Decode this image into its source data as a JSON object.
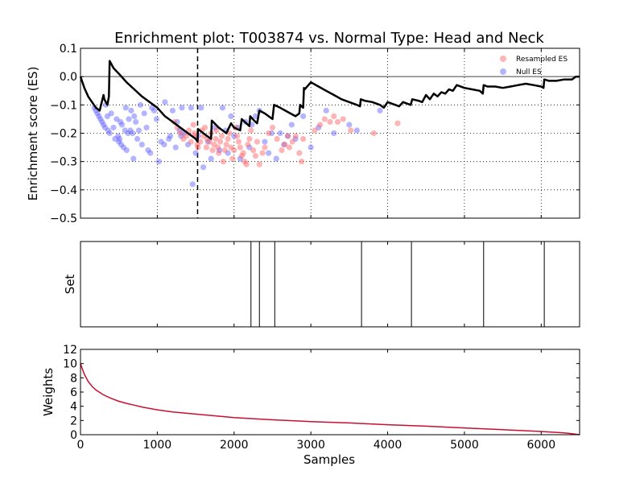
{
  "chart_data": [
    {
      "type": "line",
      "title": "Enrichment plot: T003874 vs. Normal Type: Head and Neck",
      "xlabel": "",
      "ylabel": "Enrichment score (ES)",
      "xlim": [
        0,
        6500
      ],
      "ylim": [
        -0.5,
        0.1
      ],
      "yticks": [
        0.1,
        0.0,
        -0.1,
        -0.2,
        -0.3,
        -0.4,
        -0.5
      ],
      "ytick_labels": [
        "0.1",
        "0.0",
        "−0.1",
        "−0.2",
        "−0.3",
        "−0.4",
        "−0.5"
      ],
      "grid": true,
      "legend": "top-right",
      "reference_line": 1525,
      "series": [
        {
          "name": "",
          "kind": "line",
          "color": "#000000",
          "x": [
            0,
            50,
            100,
            150,
            200,
            250,
            300,
            310,
            350,
            370,
            380,
            400,
            430,
            500,
            600,
            700,
            800,
            900,
            1000,
            1100,
            1200,
            1300,
            1400,
            1450,
            1500,
            1525,
            1530,
            1600,
            1700,
            1710,
            1800,
            1900,
            1960,
            2000,
            2080,
            2100,
            2200,
            2210,
            2260,
            2300,
            2330,
            2400,
            2500,
            2520,
            2600,
            2700,
            2800,
            2850,
            2860,
            2900,
            2910,
            2920,
            3000,
            3100,
            3200,
            3300,
            3400,
            3500,
            3600,
            3640,
            3650,
            3700,
            3800,
            3900,
            3950,
            4000,
            4100,
            4150,
            4200,
            4250,
            4300,
            4320,
            4400,
            4450,
            4500,
            4550,
            4600,
            4650,
            4700,
            4750,
            4800,
            4850,
            4900,
            5000,
            5100,
            5200,
            5240,
            5250,
            5300,
            5400,
            5500,
            5600,
            5700,
            5800,
            5900,
            6000,
            6030,
            6040,
            6100,
            6200,
            6300,
            6400,
            6450,
            6500
          ],
          "y": [
            0.0,
            -0.04,
            -0.07,
            -0.09,
            -0.11,
            -0.12,
            -0.065,
            -0.08,
            -0.1,
            -0.07,
            0.055,
            0.045,
            0.03,
            0.01,
            -0.02,
            -0.045,
            -0.07,
            -0.09,
            -0.11,
            -0.14,
            -0.16,
            -0.18,
            -0.2,
            -0.21,
            -0.22,
            -0.23,
            -0.185,
            -0.2,
            -0.22,
            -0.155,
            -0.18,
            -0.2,
            -0.165,
            -0.18,
            -0.19,
            -0.15,
            -0.175,
            -0.14,
            -0.155,
            -0.165,
            -0.12,
            -0.13,
            -0.15,
            -0.1,
            -0.11,
            -0.125,
            -0.14,
            -0.13,
            -0.1,
            -0.11,
            -0.04,
            -0.045,
            -0.02,
            -0.035,
            -0.05,
            -0.065,
            -0.08,
            -0.09,
            -0.1,
            -0.105,
            -0.08,
            -0.085,
            -0.09,
            -0.1,
            -0.11,
            -0.09,
            -0.1,
            -0.105,
            -0.09,
            -0.095,
            -0.1,
            -0.08,
            -0.085,
            -0.09,
            -0.065,
            -0.08,
            -0.06,
            -0.07,
            -0.055,
            -0.06,
            -0.045,
            -0.05,
            -0.03,
            -0.04,
            -0.045,
            -0.05,
            -0.06,
            -0.03,
            -0.035,
            -0.035,
            -0.04,
            -0.035,
            -0.03,
            -0.025,
            -0.03,
            -0.035,
            -0.04,
            -0.01,
            -0.015,
            -0.015,
            -0.01,
            -0.01,
            0.0,
            0.0
          ]
        },
        {
          "name": "Resampled ES",
          "kind": "scatter",
          "color": "#ff5a5a",
          "x": [
            1220,
            1260,
            1300,
            1340,
            1380,
            1410,
            1440,
            1470,
            1480,
            1500,
            1520,
            1530,
            1560,
            1580,
            1600,
            1620,
            1640,
            1650,
            1680,
            1700,
            1720,
            1740,
            1760,
            1770,
            1790,
            1800,
            1820,
            1840,
            1860,
            1880,
            1900,
            1920,
            1940,
            1960,
            1980,
            2000,
            2020,
            2040,
            2060,
            2080,
            2100,
            2120,
            2140,
            2160,
            2180,
            2200,
            2220,
            2250,
            2280,
            2300,
            2330,
            2370,
            2400,
            2450,
            2500,
            2560,
            2620,
            2660,
            2700,
            2720,
            2760,
            2800,
            2850,
            2880,
            2900,
            3050,
            3120,
            3180,
            3250,
            3300,
            3350,
            3420,
            3520,
            3820,
            4130
          ],
          "y": [
            -0.16,
            -0.18,
            -0.2,
            -0.22,
            -0.21,
            -0.19,
            -0.23,
            -0.17,
            -0.2,
            -0.21,
            -0.24,
            -0.25,
            -0.23,
            -0.19,
            -0.21,
            -0.18,
            -0.25,
            -0.22,
            -0.23,
            -0.2,
            -0.26,
            -0.24,
            -0.22,
            -0.19,
            -0.25,
            -0.27,
            -0.23,
            -0.21,
            -0.3,
            -0.26,
            -0.24,
            -0.22,
            -0.2,
            -0.25,
            -0.29,
            -0.26,
            -0.18,
            -0.21,
            -0.23,
            -0.25,
            -0.28,
            -0.27,
            -0.3,
            -0.31,
            -0.24,
            -0.22,
            -0.19,
            -0.26,
            -0.28,
            -0.23,
            -0.31,
            -0.27,
            -0.25,
            -0.2,
            -0.18,
            -0.22,
            -0.26,
            -0.24,
            -0.21,
            -0.25,
            -0.23,
            -0.21,
            -0.27,
            -0.3,
            -0.22,
            -0.19,
            -0.17,
            -0.15,
            -0.16,
            -0.14,
            -0.16,
            -0.15,
            -0.19,
            -0.2,
            -0.165
          ]
        },
        {
          "name": "Null ES",
          "kind": "scatter",
          "color": "#5a5aff",
          "x": [
            180,
            200,
            220,
            240,
            260,
            280,
            300,
            320,
            330,
            350,
            360,
            380,
            400,
            430,
            450,
            470,
            490,
            500,
            510,
            520,
            530,
            540,
            560,
            580,
            590,
            600,
            620,
            630,
            650,
            660,
            680,
            690,
            700,
            720,
            740,
            760,
            780,
            800,
            830,
            860,
            880,
            910,
            930,
            960,
            990,
            1020,
            1050,
            1090,
            1100,
            1150,
            1170,
            1200,
            1240,
            1260,
            1290,
            1310,
            1320,
            1350,
            1400,
            1440,
            1460,
            1500,
            1530,
            1570,
            1600,
            1660,
            1700,
            1750,
            1810,
            1850,
            1890,
            1920,
            1960,
            2000,
            2050,
            2080,
            2150,
            2200,
            2230,
            2280,
            2330,
            2400,
            2450,
            2490,
            2550,
            2600,
            2650,
            2700,
            2750,
            2800,
            2900,
            3000,
            3100,
            3200,
            3300,
            3500,
            3600,
            3900
          ],
          "y": [
            -0.11,
            -0.12,
            -0.13,
            -0.14,
            -0.15,
            -0.16,
            -0.17,
            -0.18,
            -0.1,
            -0.14,
            -0.19,
            -0.2,
            -0.13,
            -0.18,
            -0.22,
            -0.15,
            -0.21,
            -0.23,
            -0.22,
            -0.16,
            -0.24,
            -0.17,
            -0.25,
            -0.19,
            -0.11,
            -0.26,
            -0.2,
            -0.15,
            -0.19,
            -0.12,
            -0.2,
            -0.29,
            -0.14,
            -0.16,
            -0.22,
            -0.19,
            -0.1,
            -0.24,
            -0.13,
            -0.18,
            -0.26,
            -0.27,
            -0.11,
            -0.12,
            -0.15,
            -0.3,
            -0.23,
            -0.24,
            -0.09,
            -0.22,
            -0.21,
            -0.12,
            -0.25,
            -0.16,
            -0.19,
            -0.21,
            -0.11,
            -0.2,
            -0.24,
            -0.11,
            -0.38,
            -0.27,
            -0.21,
            -0.11,
            -0.32,
            -0.23,
            -0.29,
            -0.18,
            -0.26,
            -0.11,
            -0.19,
            -0.27,
            -0.14,
            -0.21,
            -0.18,
            -0.29,
            -0.16,
            -0.25,
            -0.17,
            -0.14,
            -0.12,
            -0.23,
            -0.27,
            -0.2,
            -0.29,
            -0.2,
            -0.24,
            -0.21,
            -0.17,
            -0.22,
            -0.14,
            -0.25,
            -0.18,
            -0.12,
            -0.2,
            -0.17,
            -0.19,
            -0.12
          ]
        }
      ]
    },
    {
      "type": "line",
      "title": "",
      "xlabel": "",
      "ylabel": "Set",
      "xlim": [
        0,
        6500
      ],
      "series": [
        {
          "name": "",
          "kind": "vlines",
          "color": "#000000",
          "x": [
            2220,
            2330,
            2530,
            3660,
            4310,
            5250,
            6040
          ]
        }
      ]
    },
    {
      "type": "line",
      "title": "",
      "xlabel": "Samples",
      "ylabel": "Weights",
      "xlim": [
        0,
        6500
      ],
      "ylim": [
        0,
        12
      ],
      "xticks": [
        0,
        1000,
        2000,
        3000,
        4000,
        5000,
        6000
      ],
      "xtick_labels": [
        "0",
        "1000",
        "2000",
        "3000",
        "4000",
        "5000",
        "6000"
      ],
      "yticks": [
        0,
        2,
        4,
        6,
        8,
        10,
        12
      ],
      "ytick_labels": [
        "0",
        "2",
        "4",
        "6",
        "8",
        "10",
        "12"
      ],
      "series": [
        {
          "name": "",
          "kind": "line",
          "color": "#c8102e",
          "x": [
            0,
            25,
            50,
            100,
            150,
            200,
            300,
            400,
            500,
            600,
            700,
            800,
            1000,
            1200,
            1500,
            1800,
            2000,
            2500,
            3000,
            3500,
            4000,
            4500,
            5000,
            5500,
            6000,
            6300,
            6400,
            6500
          ],
          "y": [
            10.0,
            9.2,
            8.5,
            7.5,
            6.8,
            6.3,
            5.6,
            5.1,
            4.7,
            4.4,
            4.15,
            3.9,
            3.5,
            3.2,
            2.9,
            2.6,
            2.4,
            2.1,
            1.85,
            1.65,
            1.4,
            1.2,
            0.95,
            0.7,
            0.45,
            0.25,
            0.15,
            0.0
          ]
        }
      ]
    }
  ]
}
